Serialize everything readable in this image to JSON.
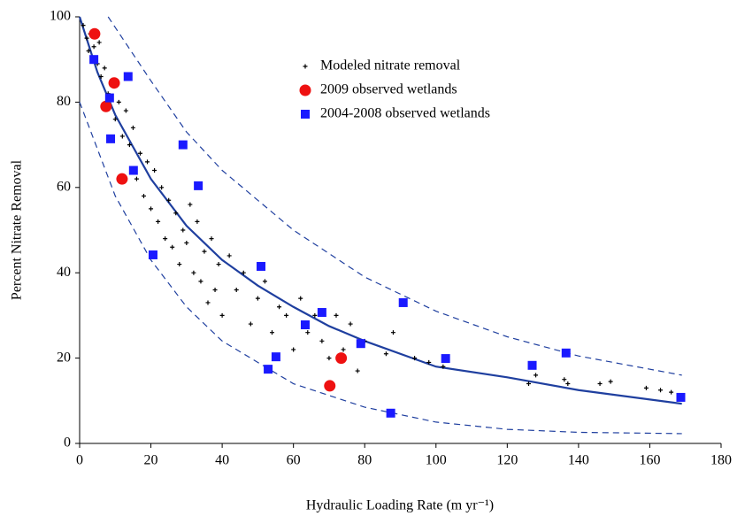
{
  "chart_data": {
    "type": "scatter",
    "x_label": "Hydraulic Loading Rate (m yr⁻¹)",
    "y_label": "Percent Nitrate Removal",
    "xlim": [
      0,
      180
    ],
    "xticks": [
      0,
      20,
      40,
      60,
      80,
      100,
      120,
      140,
      160,
      180
    ],
    "ylim": [
      0,
      100
    ],
    "yticks": [
      0,
      20,
      40,
      60,
      80,
      100
    ],
    "series": [
      {
        "name": "Modeled nitrate removal",
        "color": "#000000",
        "marker": "plus",
        "x": [
          1,
          2,
          2.5,
          3,
          3.5,
          4,
          5,
          5.5,
          6,
          7,
          8,
          9,
          10,
          11,
          12,
          13,
          14,
          15,
          16,
          17,
          18,
          19,
          20,
          21,
          22,
          23,
          24,
          25,
          26,
          27,
          28,
          29,
          30,
          31,
          32,
          33,
          34,
          35,
          36,
          37,
          38,
          39,
          40,
          42,
          44,
          46,
          48,
          50,
          52,
          54,
          56,
          58,
          60,
          62,
          64,
          66,
          68,
          70,
          72,
          74,
          76,
          78,
          80,
          86,
          88,
          94,
          98,
          102,
          126,
          128,
          136,
          137,
          146,
          149,
          159,
          163,
          166
        ],
        "values": [
          98,
          95,
          92,
          96,
          90,
          93,
          89,
          94,
          86,
          88,
          82,
          84,
          76,
          80,
          72,
          78,
          70,
          74,
          62,
          68,
          58,
          66,
          55,
          64,
          52,
          60,
          48,
          57,
          46,
          54,
          42,
          50,
          47,
          56,
          40,
          52,
          38,
          45,
          33,
          48,
          36,
          42,
          30,
          44,
          36,
          40,
          28,
          34,
          38,
          26,
          32,
          30,
          22,
          34,
          26,
          30,
          24,
          20,
          30,
          22,
          28,
          17,
          24,
          21,
          26,
          20,
          19,
          18,
          14,
          16,
          15,
          14,
          14,
          14.5,
          13,
          12.5,
          12
        ]
      },
      {
        "name": "2009 observed wetlands",
        "color": "#ee1111",
        "marker": "circle",
        "x": [
          4.2,
          9.7,
          7.4,
          11.9,
          73.4,
          70.2
        ],
        "values": [
          96,
          84.5,
          79,
          62,
          20,
          13.5
        ]
      },
      {
        "name": "2004-2008 observed wetlands",
        "color": "#1a1aff",
        "marker": "square",
        "x": [
          4,
          13.6,
          8.4,
          8.7,
          15.1,
          29,
          33.3,
          20.6,
          50.9,
          68,
          63.3,
          78.9,
          90.8,
          55.1,
          52.9,
          87.3,
          102.7,
          127,
          136.5,
          168.7
        ],
        "values": [
          90,
          86,
          81,
          71.4,
          64,
          70,
          60.4,
          44.2,
          41.5,
          30.7,
          27.8,
          23.4,
          33,
          20.3,
          17.4,
          7.1,
          19.9,
          18.3,
          21.2,
          10.8
        ]
      }
    ],
    "lines": [
      {
        "color": "#1f3f9f",
        "dash": false,
        "x": [
          0,
          5,
          10,
          20,
          30,
          40,
          50,
          60,
          70,
          80,
          100,
          120,
          140,
          169
        ],
        "values": [
          100,
          87,
          77,
          62,
          51,
          43,
          37,
          32,
          27.5,
          24,
          18,
          15.5,
          12.5,
          9.3
        ]
      },
      {
        "color": "#1f3f9f",
        "dash": true,
        "x": [
          8,
          20,
          30,
          40,
          60,
          80,
          100,
          120,
          140,
          169
        ],
        "values": [
          100,
          85,
          73,
          64,
          50,
          39,
          31,
          25,
          20.5,
          16
        ]
      },
      {
        "color": "#1f3f9f",
        "dash": true,
        "x": [
          0,
          10,
          20,
          30,
          40,
          60,
          80,
          100,
          120,
          140,
          169
        ],
        "values": [
          80,
          58,
          43,
          32,
          24,
          14,
          8.5,
          5,
          3.3,
          2.6,
          2.3
        ]
      }
    ]
  }
}
